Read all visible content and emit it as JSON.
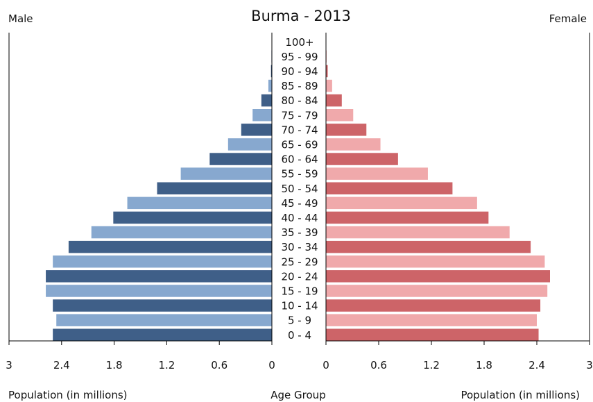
{
  "chart_data": {
    "type": "bar",
    "orientation": "horizontal-population-pyramid",
    "title": "Burma - 2013",
    "left_label": "Male",
    "right_label": "Female",
    "xlabel_left": "Population (in millions)",
    "xlabel_center": "Age Group",
    "xlabel_right": "Population (in millions)",
    "xlim": [
      0,
      3
    ],
    "ticks": [
      "0",
      "0.6",
      "1.2",
      "1.8",
      "2.4",
      "3"
    ],
    "categories": [
      "0 - 4",
      "5 - 9",
      "10 - 14",
      "15 - 19",
      "20 - 24",
      "25 - 29",
      "30 - 34",
      "35 - 39",
      "40 - 44",
      "45 - 49",
      "50 - 54",
      "55 - 59",
      "60 - 64",
      "65 - 69",
      "70 - 74",
      "75 - 79",
      "80 - 84",
      "85 - 89",
      "90 - 94",
      "95 - 99",
      "100+"
    ],
    "series": [
      {
        "name": "Male",
        "values": [
          2.5,
          2.46,
          2.5,
          2.58,
          2.58,
          2.5,
          2.32,
          2.06,
          1.81,
          1.65,
          1.31,
          1.04,
          0.71,
          0.5,
          0.35,
          0.22,
          0.12,
          0.04,
          0.01,
          0.005,
          0.002
        ]
      },
      {
        "name": "Female",
        "values": [
          2.42,
          2.4,
          2.44,
          2.52,
          2.55,
          2.49,
          2.33,
          2.09,
          1.85,
          1.72,
          1.44,
          1.16,
          0.82,
          0.62,
          0.46,
          0.31,
          0.18,
          0.07,
          0.02,
          0.007,
          0.003
        ]
      }
    ],
    "colors": {
      "male_dark": "#3f5f88",
      "male_light": "#87a8cf",
      "female_dark": "#cd6468",
      "female_light": "#f0a9ab",
      "frame": "#000000"
    },
    "grid": false
  }
}
